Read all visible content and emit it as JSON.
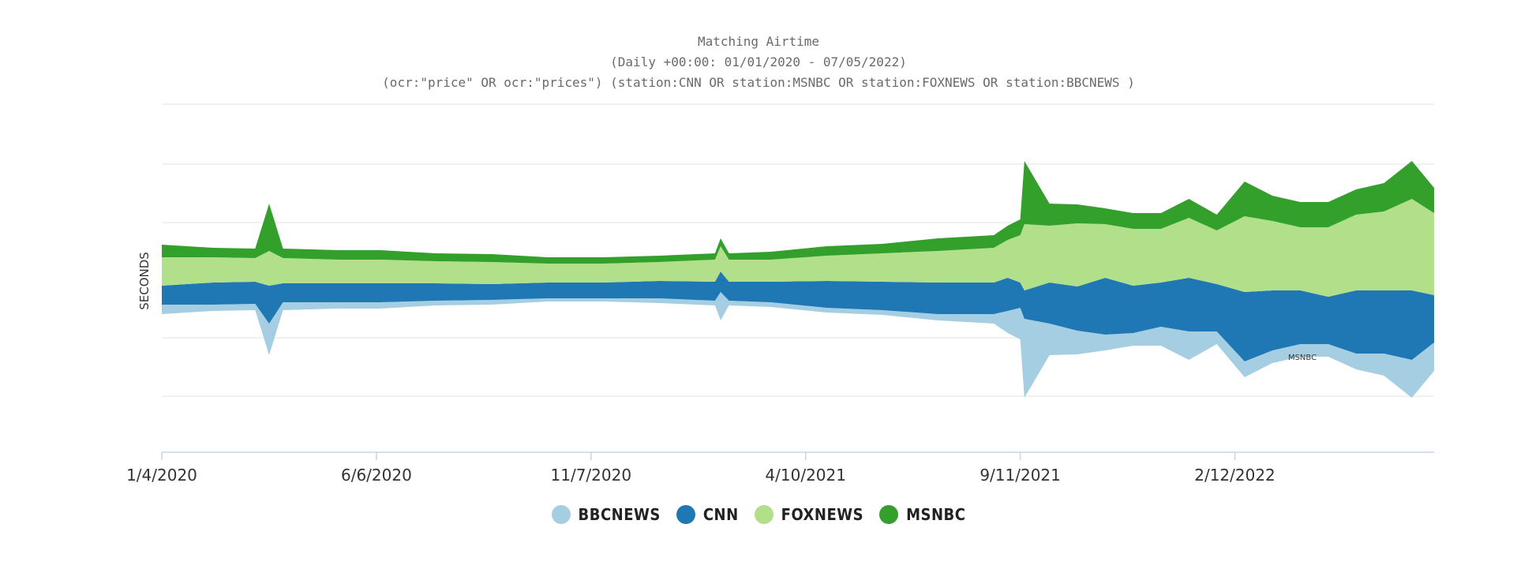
{
  "chart_data": {
    "type": "area",
    "title": "Matching Airtime",
    "subtitle_1": "(Daily +00:00: 01/01/2020 - 07/05/2022)",
    "subtitle_2": "(ocr:\"price\" OR ocr:\"prices\") (station:CNN OR station:MSNBC OR station:FOXNEWS OR station:BBCNEWS )",
    "ylabel": "SECONDS",
    "xlabel": "",
    "x_tick_labels": [
      "1/4/2020",
      "6/6/2020",
      "11/7/2020",
      "4/10/2021",
      "9/11/2021",
      "2/12/2022"
    ],
    "x_tick_days": [
      3,
      157,
      311,
      465,
      619,
      773
    ],
    "x_range_days": [
      3,
      916
    ],
    "grid": "horizontal",
    "legend_position": "bottom",
    "annotation": "MSNBC",
    "series": [
      {
        "name": "BBCNEWS",
        "color": "#a6cee3",
        "x_days": [
          3,
          40,
          70,
          80,
          90,
          130,
          160,
          200,
          240,
          280,
          320,
          360,
          400,
          404,
          410,
          440,
          480,
          520,
          560,
          600,
          610,
          619,
          622,
          640,
          660,
          680,
          700,
          720,
          740,
          760,
          780,
          800,
          820,
          840,
          860,
          880,
          900,
          916
        ],
        "values": [
          6,
          4,
          4,
          20,
          5,
          4,
          4,
          3,
          3,
          2,
          2,
          3,
          3,
          18,
          3,
          3,
          3,
          3,
          4,
          6,
          14,
          20,
          50,
          20,
          15,
          10,
          8,
          12,
          18,
          8,
          10,
          8,
          8,
          8,
          10,
          14,
          24,
          18
        ]
      },
      {
        "name": "CNN",
        "color": "#1f78b4",
        "x_days": [
          3,
          40,
          70,
          80,
          90,
          130,
          160,
          200,
          240,
          280,
          320,
          360,
          400,
          404,
          410,
          440,
          480,
          520,
          560,
          600,
          610,
          619,
          622,
          640,
          660,
          680,
          700,
          720,
          740,
          760,
          780,
          800,
          820,
          840,
          860,
          880,
          900,
          916
        ],
        "values": [
          12,
          14,
          14,
          24,
          12,
          12,
          12,
          11,
          10,
          10,
          10,
          11,
          12,
          13,
          12,
          13,
          17,
          18,
          20,
          20,
          21,
          16,
          18,
          26,
          28,
          36,
          30,
          28,
          34,
          30,
          44,
          38,
          34,
          30,
          40,
          40,
          44,
          30
        ]
      },
      {
        "name": "FOXNEWS",
        "color": "#b2df8a",
        "x_days": [
          3,
          40,
          70,
          80,
          90,
          130,
          160,
          200,
          240,
          280,
          320,
          360,
          400,
          404,
          410,
          440,
          480,
          520,
          560,
          600,
          610,
          619,
          622,
          640,
          660,
          680,
          700,
          720,
          740,
          760,
          780,
          800,
          820,
          840,
          860,
          880,
          900,
          916
        ],
        "values": [
          18,
          16,
          15,
          22,
          16,
          15,
          15,
          14,
          14,
          12,
          12,
          12,
          14,
          16,
          14,
          14,
          16,
          18,
          20,
          22,
          24,
          30,
          42,
          36,
          40,
          34,
          36,
          34,
          38,
          34,
          48,
          44,
          40,
          44,
          48,
          50,
          58,
          52
        ]
      },
      {
        "name": "MSNBC",
        "color": "#33a02c",
        "x_days": [
          3,
          40,
          70,
          80,
          90,
          130,
          160,
          200,
          240,
          280,
          320,
          360,
          400,
          404,
          410,
          440,
          480,
          520,
          560,
          600,
          610,
          619,
          622,
          640,
          660,
          680,
          700,
          720,
          740,
          760,
          780,
          800,
          820,
          840,
          860,
          880,
          900,
          916
        ],
        "values": [
          8,
          6,
          6,
          30,
          6,
          6,
          6,
          5,
          5,
          4,
          4,
          4,
          4,
          5,
          4,
          5,
          6,
          6,
          8,
          8,
          9,
          10,
          40,
          14,
          12,
          10,
          10,
          10,
          12,
          10,
          22,
          16,
          16,
          16,
          16,
          18,
          24,
          16
        ]
      }
    ]
  }
}
